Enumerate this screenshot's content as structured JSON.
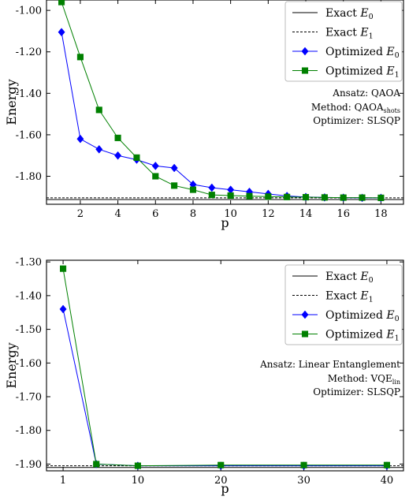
{
  "chart_data": [
    {
      "type": "line",
      "xlabel": "p",
      "ylabel": "Energy",
      "xlim": [
        0.2,
        19.2
      ],
      "ylim": [
        -1.935,
        -0.95
      ],
      "xticks": [
        2,
        4,
        6,
        8,
        10,
        12,
        14,
        16,
        18
      ],
      "xtick_labels": [
        "2",
        "4",
        "6",
        "8",
        "10",
        "12",
        "14",
        "16",
        "18"
      ],
      "yticks": [
        -1.0,
        -1.2,
        -1.4,
        -1.6,
        -1.8
      ],
      "ytick_labels": [
        "-1.00",
        "-1.20",
        "-1.40",
        "-1.60",
        "-1.80"
      ],
      "legend_position": "top-right",
      "annotation": {
        "line1": "Ansatz: QAOA",
        "line2_prefix": "Method: QAOA",
        "line2_sub": "shots",
        "line3": "Optimizer: SLSQP"
      },
      "hlines": [
        {
          "name": "Exact E0",
          "label_text": "Exact ",
          "label_var": "E",
          "label_sub": "0",
          "y": -1.912,
          "style": "solid",
          "color": "#000000"
        },
        {
          "name": "Exact E1",
          "label_text": "Exact ",
          "label_var": "E",
          "label_sub": "1",
          "y": -1.904,
          "style": "dashed",
          "color": "#000000"
        }
      ],
      "series": [
        {
          "name": "Optimized E0",
          "label_text": "Optimized ",
          "label_var": "E",
          "label_sub": "0",
          "color": "#0000ff",
          "marker": "diamond",
          "x": [
            1,
            2,
            3,
            4,
            5,
            6,
            7,
            8,
            9,
            10,
            11,
            12,
            13,
            14,
            15,
            16,
            17,
            18
          ],
          "y": [
            -1.105,
            -1.62,
            -1.67,
            -1.7,
            -1.72,
            -1.75,
            -1.76,
            -1.84,
            -1.855,
            -1.865,
            -1.875,
            -1.885,
            -1.895,
            -1.9,
            -1.902,
            -1.903,
            -1.904,
            -1.904
          ]
        },
        {
          "name": "Optimized E1",
          "label_text": "Optimized ",
          "label_var": "E",
          "label_sub": "1",
          "color": "#008000",
          "marker": "square",
          "x": [
            1,
            2,
            3,
            4,
            5,
            6,
            7,
            8,
            9,
            10,
            11,
            12,
            13,
            14,
            15,
            16,
            17,
            18
          ],
          "y": [
            -0.96,
            -1.225,
            -1.48,
            -1.615,
            -1.71,
            -1.8,
            -1.845,
            -1.865,
            -1.89,
            -1.893,
            -1.896,
            -1.898,
            -1.9,
            -1.901,
            -1.902,
            -1.903,
            -1.903,
            -1.904
          ]
        }
      ]
    },
    {
      "type": "line",
      "xlabel": "p",
      "ylabel": "Energy",
      "xlim": [
        -1,
        42
      ],
      "ylim": [
        -1.92,
        -1.295
      ],
      "xticks": [
        1,
        10,
        20,
        30,
        40
      ],
      "xtick_labels": [
        "1",
        "10",
        "20",
        "30",
        "40"
      ],
      "yticks": [
        -1.3,
        -1.4,
        -1.5,
        -1.6,
        -1.7,
        -1.8,
        -1.9
      ],
      "ytick_labels": [
        "-1.30",
        "-1.40",
        "-1.50",
        "-1.60",
        "-1.70",
        "-1.80",
        "-1.90"
      ],
      "legend_position": "top-right",
      "annotation": {
        "line1": "Ansatz: Linear Entanglement",
        "line2_prefix": "Method: VQE",
        "line2_sub": "lin",
        "line3": "Optimizer: SLSQP"
      },
      "hlines": [
        {
          "name": "Exact E0",
          "label_text": "Exact ",
          "label_var": "E",
          "label_sub": "0",
          "y": -1.91,
          "style": "solid",
          "color": "#000000"
        },
        {
          "name": "Exact E1",
          "label_text": "Exact ",
          "label_var": "E",
          "label_sub": "1",
          "y": -1.905,
          "style": "dashed",
          "color": "#000000"
        }
      ],
      "series": [
        {
          "name": "Optimized E0",
          "label_text": "Optimized ",
          "label_var": "E",
          "label_sub": "0",
          "color": "#0000ff",
          "marker": "diamond",
          "x": [
            1,
            5,
            10,
            20,
            30,
            40
          ],
          "y": [
            -1.44,
            -1.9,
            -1.905,
            -1.905,
            -1.905,
            -1.905
          ]
        },
        {
          "name": "Optimized E1",
          "label_text": "Optimized ",
          "label_var": "E",
          "label_sub": "1",
          "color": "#008000",
          "marker": "square",
          "x": [
            1,
            5,
            10,
            20,
            30,
            40
          ],
          "y": [
            -1.32,
            -1.9,
            -1.905,
            -1.903,
            -1.903,
            -1.903
          ]
        }
      ]
    }
  ]
}
